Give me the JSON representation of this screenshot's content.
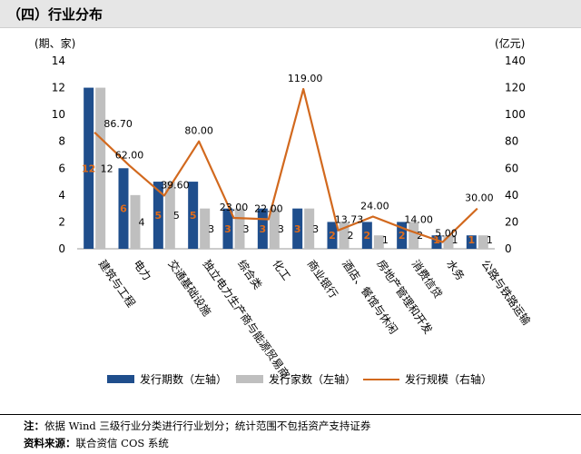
{
  "section_title": "（四）行业分布",
  "chart_data": {
    "type": "bar+line",
    "categories": [
      "建筑与工程",
      "电力",
      "交通基础设施",
      "独立电力生产商与能源贸易商",
      "综合类",
      "化工",
      "商业银行",
      "酒店、餐馆与休闲",
      "房地产管理和开发",
      "消费信贷",
      "水务",
      "公路与铁路运输"
    ],
    "series": [
      {
        "name": "发行期数（左轴）",
        "type": "bar",
        "axis": "left",
        "color": "#1f4e8c",
        "values": [
          12,
          6,
          5,
          5,
          3,
          3,
          3,
          2,
          2,
          2,
          1,
          1
        ]
      },
      {
        "name": "发行家数（左轴）",
        "type": "bar",
        "axis": "left",
        "color": "#bfbfbf",
        "values": [
          12,
          4,
          5,
          3,
          3,
          3,
          3,
          2,
          1,
          2,
          1,
          1
        ]
      },
      {
        "name": "发行规模（右轴）",
        "type": "line",
        "axis": "right",
        "color": "#d2691e",
        "values": [
          86.7,
          62.0,
          39.6,
          80.0,
          23.0,
          22.0,
          119.0,
          13.73,
          24.0,
          14.0,
          5.0,
          30.0
        ]
      }
    ],
    "bar1_labels": [
      "12",
      "6",
      "5",
      "5",
      "3",
      "3",
      "3",
      "2",
      "2",
      "2",
      "1",
      "1"
    ],
    "bar2_labels": [
      "12",
      "4",
      "5",
      "3",
      "3",
      "3",
      "3",
      "2",
      "1",
      "2",
      "1",
      "1"
    ],
    "line_labels": [
      "86.70",
      "62.00",
      "39.60",
      "80.00",
      "23.00",
      "22.00",
      "119.00",
      "13.73",
      "24.00",
      "14.00",
      "5.00",
      "30.00"
    ],
    "left_axis": {
      "label": "(期、家)",
      "ylim": [
        0,
        14
      ],
      "ticks": [
        "0",
        "2",
        "4",
        "6",
        "8",
        "10",
        "12",
        "14"
      ]
    },
    "right_axis": {
      "label": "(亿元)",
      "ylim": [
        0,
        140
      ],
      "ticks": [
        "0",
        "20",
        "40",
        "60",
        "80",
        "100",
        "120",
        "140"
      ]
    },
    "legend_position": "bottom",
    "grid": false
  },
  "footnote": {
    "note_label": "注：",
    "note_text": "依据 Wind 三级行业分类进行行业划分；统计范围不包括资产支持证券",
    "source_label": "资料来源：",
    "source_text": "联合资信 COS 系统"
  }
}
